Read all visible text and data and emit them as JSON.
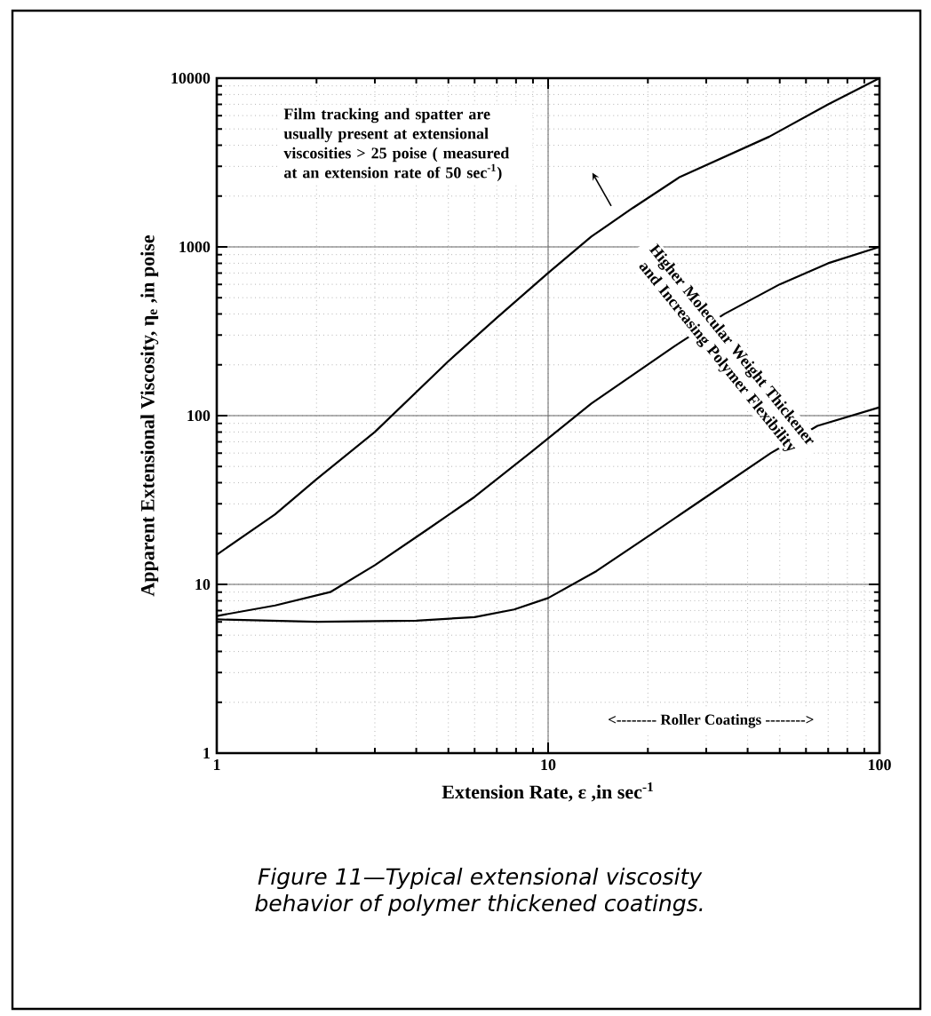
{
  "chart_data": {
    "type": "line",
    "xlabel": "Extension Rate, ε ,in sec$^{-1}$",
    "ylabel": "Apparent Extensional Viscosity, η$_{e}$ ,in poise",
    "log": "xy",
    "grid": true,
    "marker": "none",
    "line_style": "solid",
    "xlim": [
      1,
      100
    ],
    "ylim": [
      1,
      10000
    ],
    "xticks": [
      1,
      10,
      100
    ],
    "yticks": [
      1,
      10,
      100,
      1000,
      10000
    ],
    "series": [
      {
        "color": "#000000",
        "x": [
          1,
          1.5,
          2,
          3,
          5,
          7,
          10,
          13.5,
          18,
          25,
          46.5,
          70,
          100
        ],
        "values": [
          15,
          26,
          42,
          80,
          210,
          380,
          700,
          1150,
          1700,
          2600,
          4500,
          7000,
          10000
        ]
      },
      {
        "color": "#000000",
        "x": [
          1,
          1.5,
          2.2,
          3,
          4.3,
          6,
          9,
          13.5,
          24,
          34,
          50,
          70,
          100
        ],
        "values": [
          6.5,
          7.5,
          9,
          13,
          21,
          33,
          62,
          118,
          257,
          400,
          600,
          800,
          1000
        ]
      },
      {
        "color": "#000000",
        "x": [
          1,
          2,
          4,
          6,
          7.9,
          10,
          14,
          20.6,
          30,
          47,
          65,
          100
        ],
        "values": [
          6.2,
          6,
          6.1,
          6.4,
          7.1,
          8.3,
          12,
          20,
          33,
          60,
          87,
          112
        ]
      }
    ],
    "annotations": [
      "Film tracking and spatter are usually present at extensional viscosities > 25 poise ( measured at an extension rate of 50 sec$^{-1}$)",
      "Higher Molecular Weight Thickener and Increasing Polymer Flexibility",
      "<-------- Roller Coatings -------->",
      "Figure 11—Typical extensional viscosity behavior of polymer thickened coatings."
    ]
  }
}
